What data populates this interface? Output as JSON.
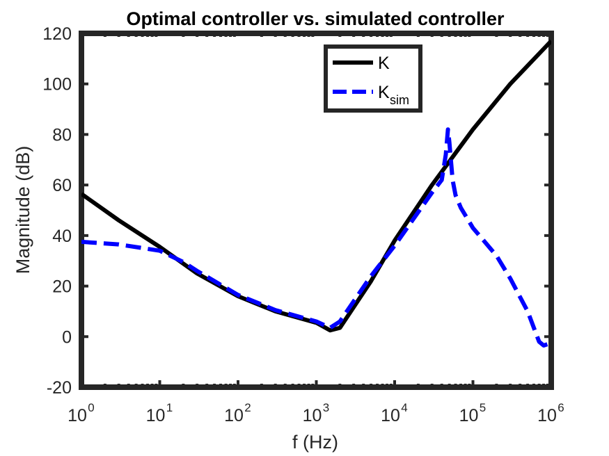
{
  "chart_data": {
    "type": "line",
    "title": "Optimal controller vs. simulated controller",
    "xlabel": "f (Hz)",
    "ylabel": "Magnitude (dB)",
    "xscale": "log",
    "xlim": [
      1,
      1000000
    ],
    "ylim": [
      -20,
      120
    ],
    "x_ticks": [
      {
        "base": "10",
        "exp": "0"
      },
      {
        "base": "10",
        "exp": "1"
      },
      {
        "base": "10",
        "exp": "2"
      },
      {
        "base": "10",
        "exp": "3"
      },
      {
        "base": "10",
        "exp": "4"
      },
      {
        "base": "10",
        "exp": "5"
      },
      {
        "base": "10",
        "exp": "6"
      }
    ],
    "y_ticks": [
      "-20",
      "0",
      "20",
      "40",
      "60",
      "80",
      "100",
      "120"
    ],
    "grid": false,
    "legend_position": "top-right",
    "series": [
      {
        "name": "K",
        "color": "#000000",
        "style": "solid",
        "x": [
          1,
          3,
          10,
          30,
          100,
          300,
          1000,
          1500,
          2000,
          5000,
          10000,
          30000,
          100000,
          300000,
          1000000
        ],
        "y": [
          56.5,
          46,
          35.5,
          25,
          16,
          10,
          5.5,
          2.5,
          3.5,
          22,
          38,
          60,
          82,
          100,
          117
        ]
      },
      {
        "name": "K",
        "name_sub": "sim",
        "color": "#0000FF",
        "style": "dashed",
        "x": [
          1,
          3,
          10,
          20,
          30,
          100,
          300,
          1000,
          1500,
          2000,
          3000,
          5000,
          10000,
          30000,
          40000,
          45000,
          48000,
          50000,
          55000,
          60000,
          70000,
          100000,
          200000,
          300000,
          500000,
          700000,
          800000,
          1000000
        ],
        "y": [
          37.5,
          36.5,
          34,
          29.5,
          26,
          16.5,
          10.5,
          6,
          3.5,
          6,
          14,
          24,
          36,
          57,
          62,
          72,
          82,
          77,
          62,
          56,
          51,
          43,
          32,
          23,
          10,
          -2,
          -3.5,
          -2.5
        ]
      }
    ]
  }
}
